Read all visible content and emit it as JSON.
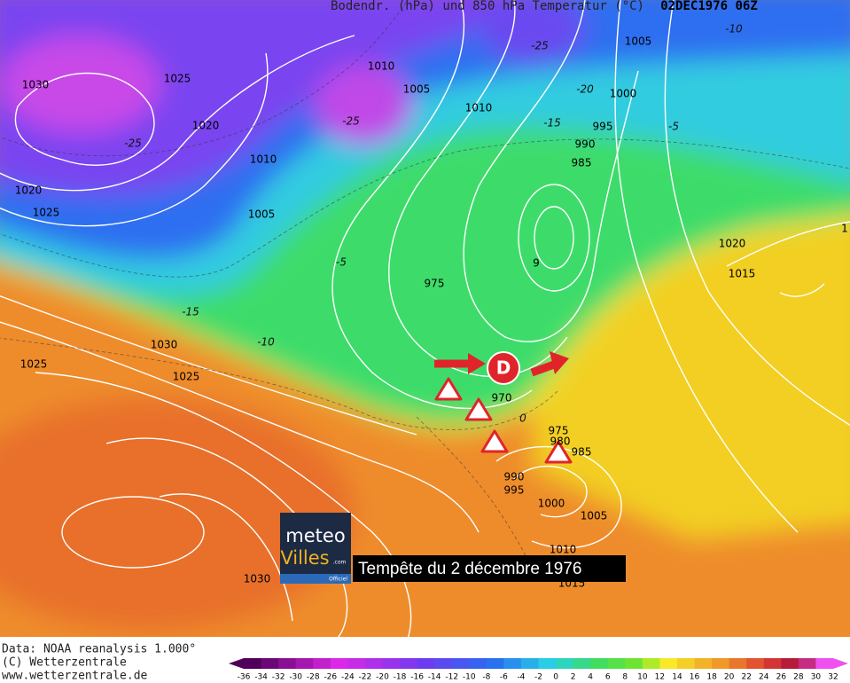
{
  "header": {
    "title": "Bodendr. (hPa) und 850 hPa Temperatur (°C)",
    "date": "02DEC1976 06Z"
  },
  "isobar_labels": [
    1030,
    1025,
    1020,
    1010,
    1005,
    1010,
    1005,
    1000,
    995,
    990,
    985,
    1010,
    1020,
    1025,
    1005,
    975,
    9,
    1020,
    1015,
    1030,
    1025,
    1025,
    970,
    975,
    980,
    985,
    990,
    995,
    1000,
    1005,
    1010,
    1030,
    1015,
    1
  ],
  "temperature_labels": [
    -10,
    -25,
    -20,
    -15,
    -5,
    -25,
    -25,
    -5,
    -15,
    -10,
    0
  ],
  "low_symbol": "D",
  "caption": "Tempête du 2 décembre 1976",
  "logo": {
    "line1": "meteo",
    "line2": "Villes",
    "suffix": ".com",
    "badge": "Officiel"
  },
  "footer": [
    "Data: NOAA reanalysis 1.000°",
    "(C) Wetterzentrale",
    "www.wetterzentrale.de"
  ],
  "colorbar": {
    "ticks": [
      -36,
      -34,
      -32,
      -30,
      -28,
      -26,
      -24,
      -22,
      -20,
      -18,
      -16,
      -14,
      -12,
      -10,
      -8,
      -6,
      -4,
      -2,
      0,
      2,
      4,
      6,
      8,
      10,
      12,
      14,
      16,
      18,
      20,
      22,
      24,
      26,
      28,
      30,
      32
    ]
  }
}
